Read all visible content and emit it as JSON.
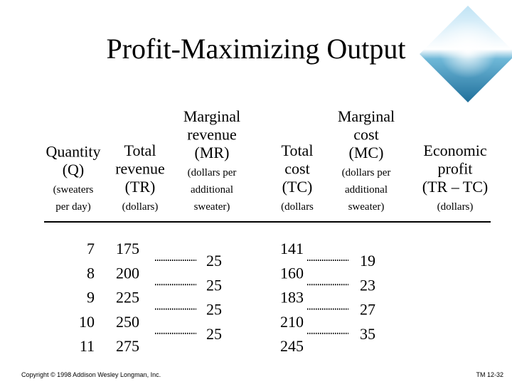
{
  "title": "Profit-Maximizing Output",
  "table": {
    "columns": [
      {
        "heading": [
          "Quantity",
          "(Q)"
        ],
        "unit": [
          "(sweaters",
          "per day)"
        ],
        "values": [
          "7",
          "8",
          "9",
          "10",
          "11"
        ]
      },
      {
        "heading": [
          "Total",
          "revenue",
          "(TR)"
        ],
        "unit": [
          "(dollars)"
        ],
        "values": [
          "175",
          "200",
          "225",
          "250",
          "275"
        ]
      },
      {
        "heading": [
          "Marginal",
          "revenue",
          "(MR)"
        ],
        "unit": [
          "(dollars per",
          "additional",
          "sweater)"
        ],
        "values": [
          "25",
          "25",
          "25",
          "25"
        ]
      },
      {
        "heading": [
          "Total",
          "cost",
          "(TC)"
        ],
        "unit": [
          "(dollars"
        ],
        "values": [
          "141",
          "160",
          "183",
          "210",
          "245"
        ]
      },
      {
        "heading": [
          "Marginal",
          "cost",
          "(MC)"
        ],
        "unit": [
          "(dollars per",
          "additional",
          "sweater)"
        ],
        "values": [
          "19",
          "23",
          "27",
          "35"
        ]
      },
      {
        "heading": [
          "Economic",
          "profit",
          "(TR – TC)"
        ],
        "unit": [
          "(dollars)"
        ]
      }
    ]
  },
  "footer": {
    "copyright": "Copyright © 1998 Addison Wesley Longman, Inc.",
    "slide_number": "TM 12-32"
  }
}
